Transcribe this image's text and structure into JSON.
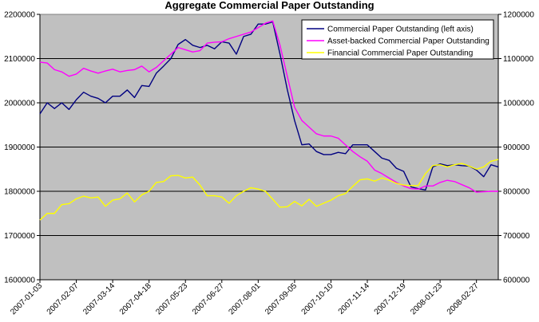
{
  "chart_data": {
    "type": "line",
    "title": "Aggregate Commercial Paper Outstanding",
    "plot_background": "#c0c0c0",
    "grid": true,
    "legend_position": "top-right",
    "x_tick_labels": [
      "2007-01-03",
      "2007-02-07",
      "2007-03-14",
      "2007-04-18",
      "2007-05-23",
      "2007-06-27",
      "2007-08-01",
      "2007-09-05",
      "2007-10-10",
      "2007-11-14",
      "2007-12-19",
      "2008-01-23",
      "2008-02-27"
    ],
    "y_left": {
      "min": 1600000,
      "max": 2200000,
      "step": 100000,
      "tick_labels": [
        "1600000",
        "1700000",
        "1800000",
        "1900000",
        "2000000",
        "2100000",
        "2200000"
      ]
    },
    "y_right": {
      "min": 600000,
      "max": 1200000,
      "step": 100000,
      "tick_labels": [
        "600000",
        "700000",
        "800000",
        "900000",
        "1000000",
        "1100000",
        "1200000"
      ]
    },
    "series": [
      {
        "name": "Commercial Paper Outstanding (left axis)",
        "axis": "left",
        "color": "#000080",
        "values": [
          1975000,
          2000000,
          1987000,
          2000000,
          1985000,
          2007000,
          2024000,
          2015000,
          2010000,
          2000000,
          2015000,
          2015000,
          2029000,
          2012000,
          2039000,
          2037000,
          2067000,
          2083000,
          2100000,
          2132000,
          2143000,
          2130000,
          2125000,
          2130000,
          2122000,
          2138000,
          2135000,
          2110000,
          2150000,
          2155000,
          2178000,
          2178000,
          2183000,
          2110000,
          2030000,
          1960000,
          1905000,
          1907000,
          1890000,
          1883000,
          1883000,
          1888000,
          1885000,
          1905000,
          1905000,
          1905000,
          1890000,
          1875000,
          1870000,
          1852000,
          1845000,
          1810000,
          1806000,
          1803000,
          1855000,
          1862000,
          1858000,
          1860000,
          1858000,
          1857000,
          1848000,
          1833000,
          1860000,
          1855000
        ]
      },
      {
        "name": "Asset-backed Commercial Paper Outstanding",
        "axis": "right",
        "color": "#ff00ff",
        "values": [
          1092000,
          1090000,
          1075000,
          1070000,
          1060000,
          1065000,
          1078000,
          1072000,
          1067000,
          1072000,
          1076000,
          1070000,
          1073000,
          1075000,
          1083000,
          1070000,
          1080000,
          1095000,
          1110000,
          1125000,
          1120000,
          1115000,
          1118000,
          1135000,
          1137000,
          1138000,
          1145000,
          1150000,
          1155000,
          1160000,
          1170000,
          1180000,
          1185000,
          1130000,
          1060000,
          990000,
          960000,
          945000,
          930000,
          925000,
          925000,
          920000,
          905000,
          890000,
          878000,
          868000,
          848000,
          840000,
          830000,
          820000,
          812000,
          806000,
          805000,
          812000,
          812000,
          820000,
          825000,
          822000,
          815000,
          808000,
          798000,
          799000,
          800000,
          800000
        ]
      },
      {
        "name": "Financial Commercial Paper Outstanding",
        "axis": "right",
        "color": "#ffff00",
        "values": [
          735000,
          750000,
          750000,
          770000,
          772000,
          783000,
          789000,
          785000,
          787000,
          766000,
          780000,
          783000,
          796000,
          776000,
          792000,
          800000,
          820000,
          822000,
          835000,
          836000,
          830000,
          832000,
          814000,
          790000,
          790000,
          787000,
          773000,
          790000,
          800000,
          808000,
          805000,
          800000,
          782000,
          764000,
          765000,
          777000,
          767000,
          782000,
          766000,
          773000,
          780000,
          790000,
          795000,
          811000,
          826000,
          828000,
          823000,
          830000,
          825000,
          818000,
          814000,
          813000,
          813000,
          840000,
          858000,
          860000,
          855000,
          860000,
          863000,
          857000,
          850000,
          855000,
          868000,
          872000
        ]
      }
    ]
  }
}
